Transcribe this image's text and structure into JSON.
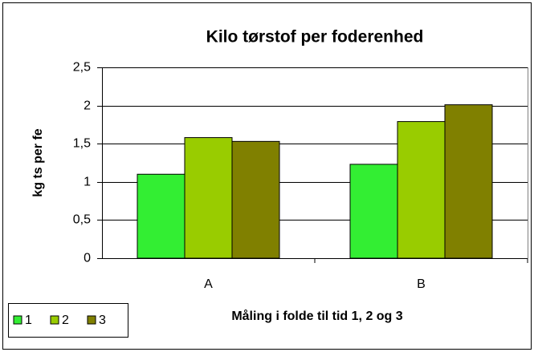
{
  "chart_data": {
    "type": "bar",
    "title": "Kilo tørstof per foderenhed",
    "x_label": "Måling i folde til tid 1, 2 og 3",
    "y_label": "kg ts per fe",
    "categories": [
      "A",
      "B"
    ],
    "series": [
      {
        "name": "1",
        "color": "#33ee33",
        "values": [
          1.1,
          1.23
        ]
      },
      {
        "name": "2",
        "color": "#99cc00",
        "values": [
          1.58,
          1.79
        ]
      },
      {
        "name": "3",
        "color": "#808000",
        "values": [
          1.53,
          2.01
        ]
      }
    ],
    "ylim": [
      0,
      2.5
    ],
    "yticks": [
      0,
      {
        "value": 0.5,
        "label": "0,5"
      },
      1,
      {
        "value": 1.5,
        "label": "1,5"
      },
      2,
      {
        "value": 2.5,
        "label": "2,5"
      }
    ],
    "grid": true,
    "legend": "bottom-left"
  }
}
